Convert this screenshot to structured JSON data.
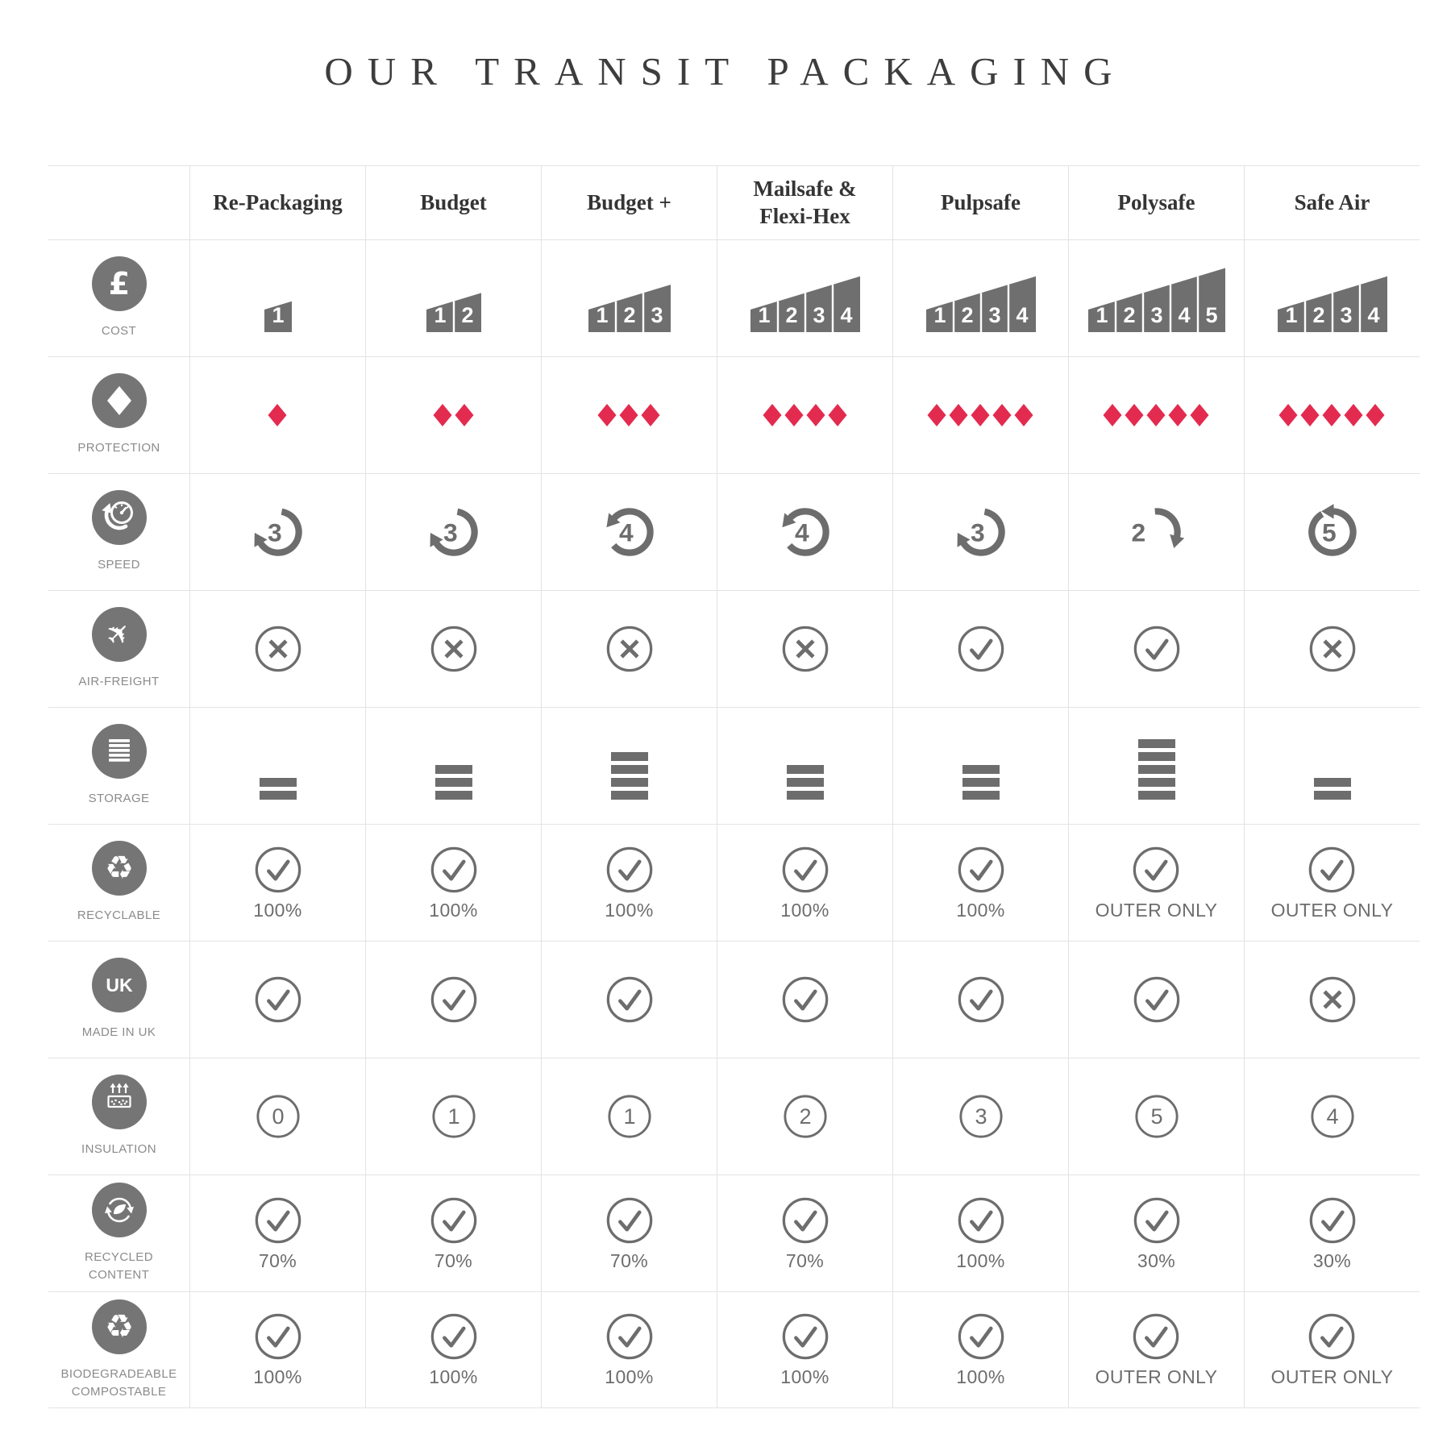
{
  "title": "OUR TRANSIT PACKAGING",
  "colors": {
    "accent_red": "#e32b50",
    "circle_grey": "#757575",
    "glyph_grey": "#6d6d6d",
    "grid_line": "#e3e3e3",
    "header_text": "#343434",
    "row_label_text": "#8b8b8b",
    "title_text": "#3d3d3d"
  },
  "chart_data": {
    "type": "table",
    "title": "OUR TRANSIT PACKAGING",
    "columns": [
      "Re-Packaging",
      "Budget",
      "Budget +",
      "Mailsafe &\nFlexi-Hex",
      "Pulpsafe",
      "Polysafe",
      "Safe Air"
    ],
    "rows": [
      {
        "id": "cost",
        "label": "COST",
        "icon": "pound-icon",
        "type": "cost-scale",
        "values": [
          1,
          2,
          3,
          4,
          4,
          5,
          4
        ]
      },
      {
        "id": "protection",
        "label": "PROTECTION",
        "icon": "diamond-icon",
        "type": "diamonds",
        "values": [
          1,
          2,
          3,
          4,
          5,
          5,
          5
        ]
      },
      {
        "id": "speed",
        "label": "SPEED",
        "icon": "speedometer-icon",
        "type": "speed-arrow",
        "values": [
          3,
          3,
          4,
          4,
          3,
          2,
          5
        ]
      },
      {
        "id": "air-freight",
        "label": "AIR-FREIGHT",
        "icon": "plane-icon",
        "type": "mark",
        "values": [
          "no",
          "no",
          "no",
          "no",
          "yes",
          "yes",
          "no"
        ]
      },
      {
        "id": "storage",
        "label": "STORAGE",
        "icon": "stack-icon",
        "type": "bars",
        "values": [
          2,
          3,
          4,
          3,
          3,
          5,
          2
        ]
      },
      {
        "id": "recyclable",
        "label": "RECYCLABLE",
        "icon": "recycle-icon",
        "type": "check-label",
        "values": [
          "100%",
          "100%",
          "100%",
          "100%",
          "100%",
          "OUTER ONLY",
          "OUTER ONLY"
        ]
      },
      {
        "id": "made-in-uk",
        "label": "MADE IN UK",
        "icon": "uk-icon",
        "type": "mark",
        "values": [
          "yes",
          "yes",
          "yes",
          "yes",
          "yes",
          "yes",
          "no"
        ]
      },
      {
        "id": "insulation",
        "label": "INSULATION",
        "icon": "insulation-icon",
        "type": "number-circle",
        "values": [
          0,
          1,
          1,
          2,
          3,
          5,
          4
        ]
      },
      {
        "id": "recycled-content",
        "label": "RECYCLED\nCONTENT",
        "icon": "recycled-content-icon",
        "type": "check-label",
        "values": [
          "70%",
          "70%",
          "70%",
          "70%",
          "100%",
          "30%",
          "30%"
        ]
      },
      {
        "id": "biodegradeable-compostable",
        "label": "BIODEGRADEABLE\nCOMPOSTABLE",
        "icon": "recycle-icon",
        "type": "check-label",
        "values": [
          "100%",
          "100%",
          "100%",
          "100%",
          "100%",
          "OUTER ONLY",
          "OUTER ONLY"
        ]
      }
    ]
  }
}
